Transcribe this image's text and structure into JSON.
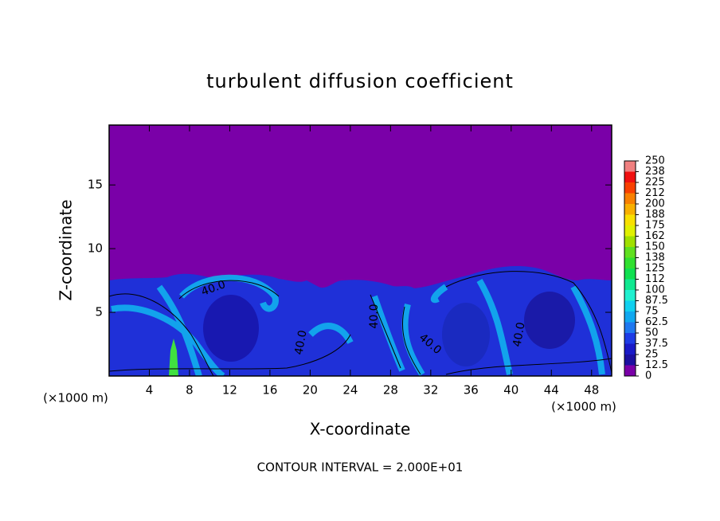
{
  "chart_data": {
    "type": "contour",
    "title": "turbulent diffusion coefficient",
    "xlabel": "X-coordinate",
    "ylabel": "Z-coordinate",
    "xunit": "(×1000 m)",
    "yunit": "(×1000 m)",
    "xlim": [
      0,
      50
    ],
    "ylim": [
      0,
      19.7
    ],
    "xticks": [
      4,
      8,
      12,
      16,
      20,
      24,
      28,
      32,
      36,
      40,
      44,
      48
    ],
    "yticks": [
      5,
      10,
      15
    ],
    "contour_labels": [
      {
        "value": 40,
        "label": "40.0"
      },
      {
        "value": 40,
        "label": "40.0"
      },
      {
        "value": 40,
        "label": "40.0"
      },
      {
        "value": 40,
        "label": "40.0"
      },
      {
        "value": 40,
        "label": "40.0"
      }
    ],
    "footnote": "CONTOUR INTERVAL = 2.000E+01",
    "colorbar": {
      "ticks": [
        0,
        12.5,
        25,
        37.5,
        50,
        62.5,
        75,
        87.5,
        100,
        {
          "value": 112.5,
          "label": "112"
        },
        125,
        {
          "value": 137.5,
          "label": "138"
        },
        150,
        {
          "value": 162.5,
          "label": "162"
        },
        175,
        {
          "value": 187.5,
          "label": "188"
        },
        200,
        {
          "value": 212.5,
          "label": "212"
        },
        225,
        {
          "value": 237.5,
          "label": "238"
        },
        250
      ],
      "colors": [
        "#7a00a8",
        "#1c10a0",
        "#1a1ac8",
        "#1e3ce6",
        "#1f78f0",
        "#10a8f0",
        "#10d0f0",
        "#20f0d0",
        "#10e890",
        "#10e050",
        "#30e030",
        "#60e020",
        "#a0e000",
        "#e0f000",
        "#f8e000",
        "#f8b000",
        "#f88000",
        "#f84000",
        "#f01010",
        "#f08080"
      ]
    }
  }
}
